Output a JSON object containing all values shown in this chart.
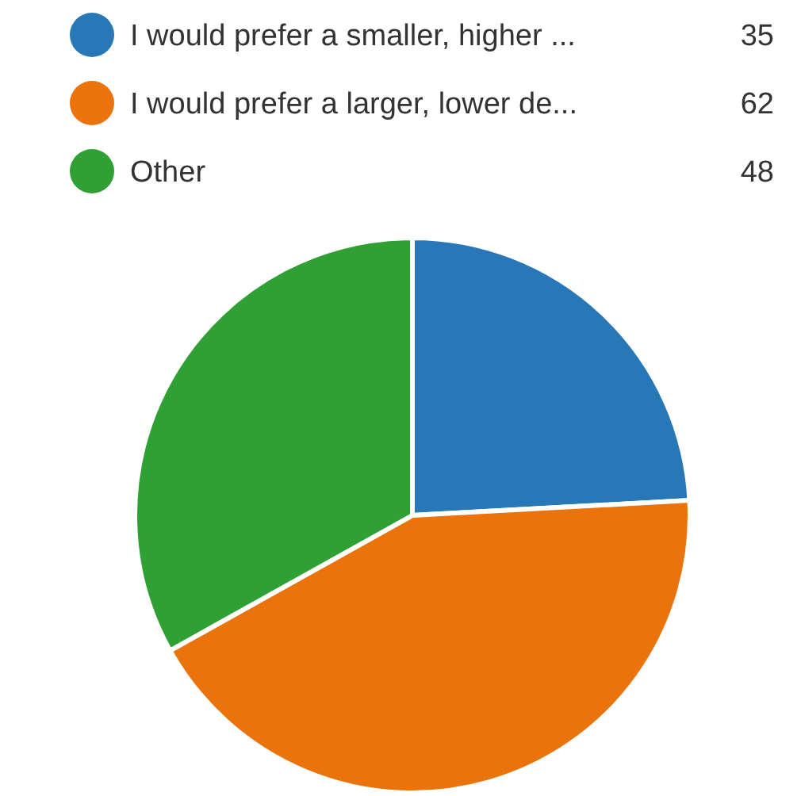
{
  "chart_data": {
    "type": "pie",
    "categories": [
      "I would prefer a smaller, higher ...",
      "I would prefer a larger, lower de...",
      "Other"
    ],
    "values": [
      35,
      62,
      48
    ],
    "colors": [
      "#2878b8",
      "#eb730c",
      "#2fa033"
    ],
    "legend": "top",
    "data_labels": true
  }
}
